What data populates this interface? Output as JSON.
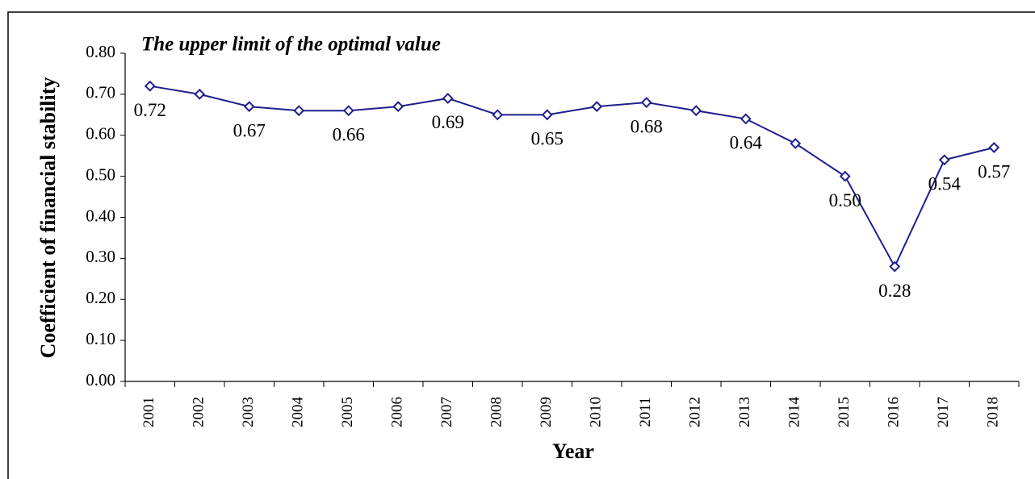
{
  "chart_data": {
    "type": "line",
    "title": "The upper limit of the optimal value",
    "x_label": "Year",
    "y_label": "Coefficient of financial stability",
    "categories": [
      "2001",
      "2002",
      "2003",
      "2004",
      "2005",
      "2006",
      "2007",
      "2008",
      "2009",
      "2010",
      "2011",
      "2012",
      "2013",
      "2014",
      "2015",
      "2016",
      "2017",
      "2018"
    ],
    "series": [
      {
        "name": "Coefficient of financial stability",
        "color": "#1f1f8f",
        "values": [
          0.72,
          0.7,
          0.67,
          0.66,
          0.66,
          0.67,
          0.69,
          0.65,
          0.65,
          0.67,
          0.68,
          0.66,
          0.64,
          0.58,
          0.5,
          0.28,
          0.54,
          0.57
        ],
        "value_labels": [
          "0.72",
          null,
          "0.67",
          null,
          "0.66",
          null,
          "0.69",
          null,
          "0.65",
          null,
          "0.68",
          null,
          "0.64",
          null,
          "0.50",
          "0.28",
          "0.54",
          "0.57"
        ]
      }
    ],
    "ylim": [
      0,
      0.8
    ],
    "yticks": [
      {
        "value": 0,
        "label": "0.00"
      },
      {
        "value": 0.1,
        "label": "0.10"
      },
      {
        "value": 0.2,
        "label": "0.20"
      },
      {
        "value": 0.3,
        "label": "0.30"
      },
      {
        "value": 0.4,
        "label": "0.40"
      },
      {
        "value": 0.5,
        "label": "0.50"
      },
      {
        "value": 0.6,
        "label": "0.60"
      },
      {
        "value": 0.7,
        "label": "0.70"
      },
      {
        "value": 0.8,
        "label": "0.80"
      }
    ],
    "grid": false
  }
}
